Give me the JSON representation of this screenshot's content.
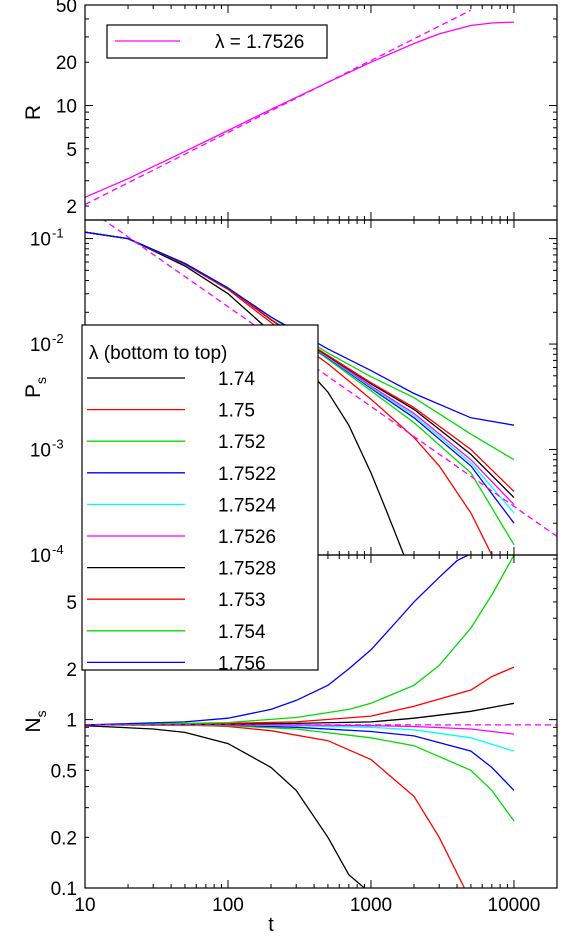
{
  "chart_data": [
    {
      "type": "line",
      "ylabel": "R",
      "xscale": "log",
      "yscale": "log",
      "xlim": [
        10,
        20000
      ],
      "ylim": [
        1.6,
        50
      ],
      "yticks": [
        {
          "v": 2,
          "label": "2"
        },
        {
          "v": 5,
          "label": "5"
        },
        {
          "v": 10,
          "label": "10"
        },
        {
          "v": 20,
          "label": "20"
        },
        {
          "v": 50,
          "label": "50"
        }
      ],
      "grid": false,
      "legend_position": "top-left",
      "series": [
        {
          "name": "λ = 1.7526",
          "color": "#ff00ff",
          "dashed": false,
          "x": [
            10,
            20,
            50,
            100,
            200,
            500,
            1000,
            2000,
            3000,
            5000,
            7000,
            10000
          ],
          "y": [
            2.3,
            3.1,
            4.8,
            6.7,
            9.4,
            14.5,
            20,
            27,
            31.5,
            36,
            37.5,
            38
          ]
        },
        {
          "name": "",
          "color": "#ff00ff",
          "dashed": true,
          "x": [
            10,
            5000
          ],
          "y": [
            2.05,
            46
          ]
        }
      ]
    },
    {
      "type": "line",
      "ylabel": "P",
      "ylabel_sub": "s",
      "xscale": "log",
      "yscale": "log",
      "xlim": [
        10,
        20000
      ],
      "ylim": [
        0.0001,
        0.15
      ],
      "yticks": [
        {
          "v": 0.0001,
          "label": "10",
          "exp": "-4"
        },
        {
          "v": 0.001,
          "label": "10",
          "exp": "-3"
        },
        {
          "v": 0.01,
          "label": "10",
          "exp": "-2"
        },
        {
          "v": 0.1,
          "label": "10",
          "exp": "-1"
        }
      ],
      "grid": false,
      "legend_title": "λ (bottom to top)",
      "legend_position": "lower-left",
      "legend_entries": [
        {
          "name": "1.74",
          "color": "#000000"
        },
        {
          "name": "1.75",
          "color": "#ff0000"
        },
        {
          "name": "1.752",
          "color": "#00dd00"
        },
        {
          "name": "1.7522",
          "color": "#0000ff"
        },
        {
          "name": "1.7524",
          "color": "#00ffff"
        },
        {
          "name": "1.7526",
          "color": "#ff00ff"
        },
        {
          "name": "1.7528",
          "color": "#000000"
        },
        {
          "name": "1.753",
          "color": "#ff0000"
        },
        {
          "name": "1.754",
          "color": "#00dd00"
        },
        {
          "name": "1.756",
          "color": "#0000ff"
        }
      ],
      "series": [
        {
          "name": "1.74",
          "color": "#000000",
          "x": [
            10,
            20,
            50,
            100,
            200,
            300,
            500,
            700,
            1000,
            1300,
            1700
          ],
          "y": [
            0.115,
            0.1,
            0.055,
            0.03,
            0.013,
            0.0075,
            0.0035,
            0.0017,
            0.0006,
            0.00025,
            0.0001
          ]
        },
        {
          "name": "1.75",
          "color": "#ff0000",
          "x": [
            10,
            20,
            50,
            100,
            200,
            500,
            1000,
            2000,
            3000,
            5000,
            7000
          ],
          "y": [
            0.115,
            0.1,
            0.057,
            0.033,
            0.016,
            0.0065,
            0.003,
            0.0013,
            0.0007,
            0.00025,
            0.0001
          ]
        },
        {
          "name": "1.752",
          "color": "#00dd00",
          "x": [
            10,
            20,
            50,
            100,
            200,
            500,
            1000,
            2000,
            5000,
            10000
          ],
          "y": [
            0.115,
            0.1,
            0.058,
            0.034,
            0.017,
            0.0072,
            0.0036,
            0.0018,
            0.0006,
            0.000125
          ]
        },
        {
          "name": "1.7522",
          "color": "#0000ff",
          "x": [
            10,
            20,
            50,
            100,
            200,
            500,
            1000,
            2000,
            5000,
            10000
          ],
          "y": [
            0.115,
            0.1,
            0.058,
            0.034,
            0.017,
            0.0074,
            0.0038,
            0.002,
            0.0007,
            0.0002
          ]
        },
        {
          "name": "1.7524",
          "color": "#00ffff",
          "x": [
            10,
            20,
            50,
            100,
            200,
            500,
            1000,
            2000,
            5000,
            10000
          ],
          "y": [
            0.115,
            0.1,
            0.058,
            0.034,
            0.017,
            0.0075,
            0.0039,
            0.0021,
            0.00075,
            0.00025
          ]
        },
        {
          "name": "1.7526",
          "color": "#ff00ff",
          "x": [
            10,
            20,
            50,
            100,
            200,
            500,
            1000,
            2000,
            5000,
            10000
          ],
          "y": [
            0.115,
            0.1,
            0.058,
            0.034,
            0.017,
            0.0076,
            0.004,
            0.0022,
            0.0008,
            0.0003
          ]
        },
        {
          "name": "1.7528",
          "color": "#000000",
          "x": [
            10,
            20,
            50,
            100,
            200,
            500,
            1000,
            2000,
            5000,
            10000
          ],
          "y": [
            0.115,
            0.1,
            0.058,
            0.034,
            0.017,
            0.0077,
            0.0042,
            0.0024,
            0.0009,
            0.00035
          ]
        },
        {
          "name": "1.753",
          "color": "#ff0000",
          "x": [
            10,
            20,
            50,
            100,
            200,
            500,
            1000,
            2000,
            5000,
            10000
          ],
          "y": [
            0.115,
            0.1,
            0.058,
            0.034,
            0.017,
            0.0078,
            0.0043,
            0.0025,
            0.001,
            0.0004
          ]
        },
        {
          "name": "1.754",
          "color": "#00dd00",
          "x": [
            10,
            20,
            50,
            100,
            200,
            500,
            1000,
            2000,
            5000,
            10000
          ],
          "y": [
            0.115,
            0.1,
            0.058,
            0.034,
            0.018,
            0.0082,
            0.0049,
            0.0031,
            0.0014,
            0.0008
          ]
        },
        {
          "name": "1.756",
          "color": "#0000ff",
          "x": [
            10,
            20,
            50,
            100,
            200,
            500,
            1000,
            2000,
            5000,
            10000
          ],
          "y": [
            0.115,
            0.1,
            0.058,
            0.034,
            0.018,
            0.009,
            0.0056,
            0.0034,
            0.002,
            0.0017
          ]
        },
        {
          "name": "",
          "color": "#ff00ff",
          "dashed": true,
          "x": [
            10,
            20000
          ],
          "y": [
            0.2,
            0.00015
          ]
        }
      ]
    },
    {
      "type": "line",
      "ylabel": "N",
      "ylabel_sub": "s",
      "xlabel": "t",
      "xscale": "log",
      "yscale": "log",
      "xlim": [
        10,
        20000
      ],
      "ylim": [
        0.1,
        9.5
      ],
      "xticks": [
        {
          "v": 10,
          "label": "10"
        },
        {
          "v": 100,
          "label": "100"
        },
        {
          "v": 1000,
          "label": "1000"
        },
        {
          "v": 10000,
          "label": "10000"
        }
      ],
      "yticks": [
        {
          "v": 0.1,
          "label": "0.1"
        },
        {
          "v": 0.2,
          "label": "0.2"
        },
        {
          "v": 0.5,
          "label": "0.5"
        },
        {
          "v": 1,
          "label": "1"
        },
        {
          "v": 2,
          "label": "2"
        },
        {
          "v": 5,
          "label": "5"
        }
      ],
      "grid": false,
      "series": [
        {
          "name": "1.74",
          "color": "#000000",
          "x": [
            10,
            30,
            50,
            100,
            200,
            300,
            500,
            700,
            900
          ],
          "y": [
            0.92,
            0.88,
            0.84,
            0.72,
            0.52,
            0.38,
            0.2,
            0.12,
            0.1
          ]
        },
        {
          "name": "1.75",
          "color": "#ff0000",
          "x": [
            10,
            50,
            100,
            200,
            500,
            1000,
            2000,
            3000,
            4500
          ],
          "y": [
            0.93,
            0.93,
            0.91,
            0.86,
            0.75,
            0.58,
            0.35,
            0.2,
            0.1
          ]
        },
        {
          "name": "1.752",
          "color": "#00dd00",
          "x": [
            10,
            100,
            300,
            1000,
            2000,
            5000,
            7000,
            10000
          ],
          "y": [
            0.93,
            0.92,
            0.88,
            0.78,
            0.7,
            0.5,
            0.38,
            0.25
          ]
        },
        {
          "name": "1.7522",
          "color": "#0000ff",
          "x": [
            10,
            100,
            300,
            1000,
            2000,
            5000,
            7000,
            10000
          ],
          "y": [
            0.93,
            0.93,
            0.9,
            0.85,
            0.8,
            0.65,
            0.52,
            0.38
          ]
        },
        {
          "name": "1.7524",
          "color": "#00ffff",
          "x": [
            10,
            100,
            300,
            1000,
            2000,
            5000,
            10000
          ],
          "y": [
            0.93,
            0.93,
            0.92,
            0.9,
            0.87,
            0.78,
            0.65
          ]
        },
        {
          "name": "1.7526",
          "color": "#ff00ff",
          "x": [
            10,
            100,
            300,
            1000,
            2000,
            5000,
            10000
          ],
          "y": [
            0.93,
            0.93,
            0.93,
            0.92,
            0.91,
            0.88,
            0.82
          ]
        },
        {
          "name": "1.7528",
          "color": "#000000",
          "x": [
            10,
            100,
            300,
            1000,
            2000,
            5000,
            10000
          ],
          "y": [
            0.93,
            0.94,
            0.95,
            0.97,
            1.02,
            1.12,
            1.25
          ]
        },
        {
          "name": "1.753",
          "color": "#ff0000",
          "x": [
            10,
            100,
            300,
            1000,
            2000,
            5000,
            7000,
            10000
          ],
          "y": [
            0.93,
            0.95,
            0.97,
            1.05,
            1.2,
            1.5,
            1.8,
            2.05
          ]
        },
        {
          "name": "1.754",
          "color": "#00dd00",
          "x": [
            10,
            100,
            300,
            700,
            1000,
            2000,
            3000,
            5000,
            7000,
            10000
          ],
          "y": [
            0.93,
            0.96,
            1.03,
            1.15,
            1.25,
            1.6,
            2.1,
            3.5,
            5.5,
            9.5
          ]
        },
        {
          "name": "1.756",
          "color": "#0000ff",
          "x": [
            10,
            50,
            100,
            200,
            300,
            500,
            700,
            1000,
            1500,
            2000,
            3000,
            4000,
            4800
          ],
          "y": [
            0.93,
            0.97,
            1.02,
            1.15,
            1.3,
            1.6,
            2.0,
            2.6,
            3.8,
            5.0,
            7.0,
            8.8,
            9.5
          ]
        },
        {
          "name": "",
          "color": "#ff00ff",
          "dashed": true,
          "x": [
            10,
            20000
          ],
          "y": [
            0.93,
            0.93
          ]
        }
      ]
    }
  ]
}
